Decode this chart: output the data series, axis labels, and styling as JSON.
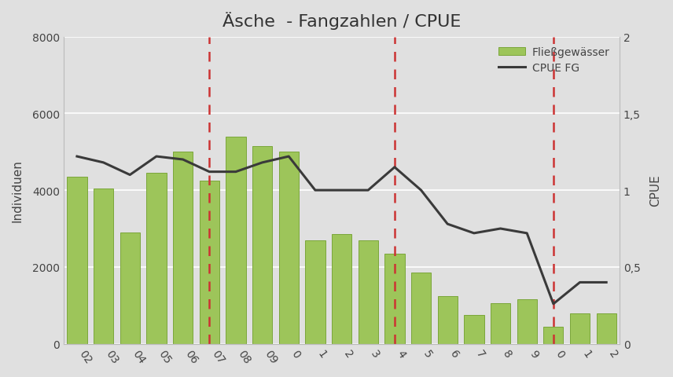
{
  "title": "Äsche  - Fangzahlen / CPUE",
  "ylabel_left": "Individuen",
  "ylabel_right": "CPUE",
  "categories": [
    "02",
    "03",
    "04",
    "05",
    "06",
    "07",
    "08",
    "09",
    "0",
    "1",
    "2",
    "3",
    "4",
    "5",
    "6",
    "7",
    "8",
    "9",
    "0",
    "1",
    "2"
  ],
  "bar_values": [
    4350,
    4050,
    2900,
    4450,
    5000,
    4250,
    5400,
    5150,
    5000,
    2700,
    2850,
    2700,
    2350,
    1850,
    1250,
    750,
    1050,
    1150,
    450,
    800,
    800
  ],
  "cpue_values": [
    1.22,
    1.18,
    1.1,
    1.22,
    1.2,
    1.12,
    1.12,
    1.18,
    1.22,
    1.0,
    1.0,
    1.0,
    1.15,
    1.0,
    0.78,
    0.72,
    0.75,
    0.72,
    0.26,
    0.4,
    0.4
  ],
  "bar_color": "#9DC55A",
  "bar_edge_color": "#7AA63A",
  "line_color": "#3a3a3a",
  "vline_color": "#CC3333",
  "vline_positions": [
    5,
    12,
    18
  ],
  "ylim_left": [
    0,
    8000
  ],
  "ylim_right": [
    0,
    2
  ],
  "yticks_left": [
    0,
    2000,
    4000,
    6000,
    8000
  ],
  "yticks_right": [
    0,
    0.5,
    1.0,
    1.5,
    2.0
  ],
  "ytick_labels_right": [
    "0",
    "0,5",
    "1",
    "1,5",
    "2"
  ],
  "background_color": "#E0E0E0",
  "legend_bar_label": "Fließgewässer",
  "legend_line_label": "CPUE FG",
  "title_fontsize": 16,
  "axis_fontsize": 11,
  "tick_fontsize": 10
}
